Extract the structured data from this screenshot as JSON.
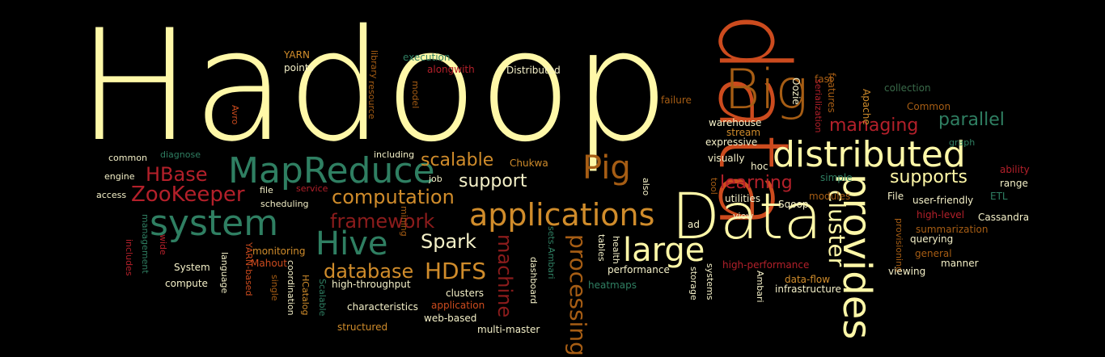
{
  "colors": {
    "background": "#000000",
    "cream": "#fff8a8",
    "orange": "#cc4b1e",
    "brown": "#a65d14",
    "green": "#2f7f62",
    "darkgreen": "#3a6b4a",
    "red": "#b3202a",
    "darkred": "#8c1c1c",
    "gold": "#d08c2b",
    "light": "#f4f0c8"
  },
  "words": [
    "Hadoop",
    "data",
    "Big",
    "Data",
    "distributed",
    "provides",
    "MapReduce",
    "system",
    "Hive",
    "large",
    "applications",
    "Pig",
    "cluster",
    "processing",
    "HDFS",
    "database",
    "framework",
    "computation",
    "ZooKeeper",
    "HBase",
    "Spark",
    "scalable",
    "supports",
    "managing",
    "parallel",
    "learning",
    "machine",
    "support",
    "warehouse",
    "YARN",
    "points",
    "library",
    "execution",
    "alongwith",
    "Distributed",
    "model",
    "Avro",
    "resource",
    "mining",
    "fast",
    "Oozie",
    "serialization",
    "features",
    "Apache",
    "collection",
    "Common",
    "graph",
    "failure",
    "stream",
    "expressive",
    "visually",
    "hoc",
    "common",
    "diagnose",
    "including",
    "Chukwa",
    "job",
    "engine",
    "access",
    "file",
    "service",
    "scheduling",
    "also",
    "tool",
    "utilities",
    "simple",
    "modules",
    "ability",
    "range",
    "File",
    "user-friendly",
    "ETL",
    "high-level",
    "Cassandra",
    "Sqoop",
    "view",
    "summarization",
    "querying",
    "provisioning",
    "general",
    "manner",
    "viewing",
    "ad",
    "tables",
    "health",
    "sets.Ambari",
    "dashboard",
    "monitoring",
    "Mahout",
    "YARN-based",
    "language",
    "single",
    "coordination",
    "HCatalog",
    "Scalable",
    "System",
    "compute",
    "management",
    "wide",
    "includes",
    "performance",
    "high-performance",
    "storage",
    "systems",
    "Ambari",
    "data-flow",
    "infrastructure",
    "heatmaps",
    "clusters",
    "high-throughput",
    "characteristics",
    "application",
    "web-based",
    "structured",
    "multi-master"
  ]
}
